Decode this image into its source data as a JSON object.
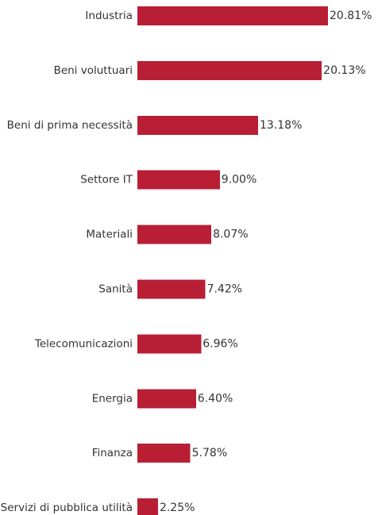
{
  "chart_data": {
    "type": "bar",
    "orientation": "horizontal",
    "categories": [
      "Industria",
      "Beni voluttuari",
      "Beni di prima necessità",
      "Settore IT",
      "Materiali",
      "Sanità",
      "Telecomunicazioni",
      "Energia",
      "Finanza",
      "Servizi di pubblica utilità"
    ],
    "values": [
      20.81,
      20.13,
      13.18,
      9.0,
      8.07,
      7.42,
      6.96,
      6.4,
      5.78,
      2.25
    ],
    "value_labels": [
      "20.81%",
      "20.13%",
      "13.18%",
      "9.00%",
      "8.07%",
      "7.42%",
      "6.96%",
      "6.40%",
      "5.78%",
      "2.25%"
    ],
    "unit": "%",
    "xlim": [
      0,
      20.81
    ],
    "grid": false,
    "legend": "none",
    "bar_color": "#b81f35"
  }
}
